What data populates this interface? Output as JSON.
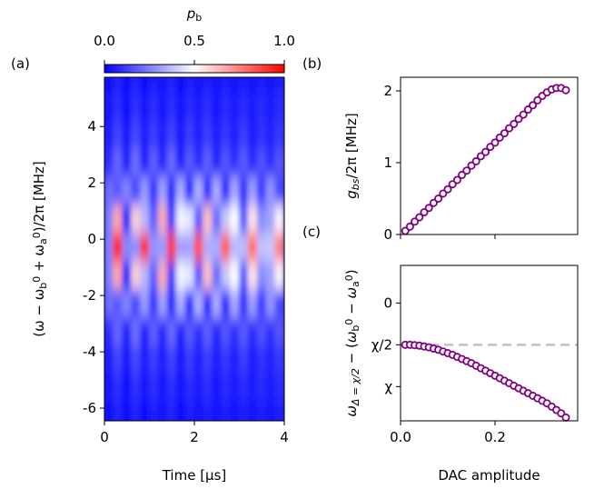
{
  "chart_data": [
    {
      "type": "heatmap",
      "panel_label": "(a)",
      "xlabel": "Time [μs]",
      "ylabel": [
        {
          "text": "(ω − ω",
          "italic": false
        },
        {
          "text": "b",
          "sub": true
        },
        {
          "text": "0",
          "sup": true
        },
        {
          "text": " + ω"
        },
        {
          "text": "a",
          "sub": true
        },
        {
          "text": "0",
          "sup": true
        },
        {
          "text": ")/2π [MHz]"
        }
      ],
      "x": [
        0.1,
        0.3,
        0.5,
        0.7,
        0.9,
        1.1,
        1.3,
        1.5,
        1.7,
        1.9,
        2.1,
        2.3,
        2.5,
        2.7,
        2.9,
        3.1,
        3.3,
        3.5,
        3.7,
        3.9
      ],
      "y": [
        5.7,
        4.7,
        3.7,
        2.7,
        1.7,
        0.7,
        -0.3,
        -1.3,
        -2.3,
        -3.3,
        -4.3,
        -5.3,
        -6.3
      ],
      "z": [
        [
          0.03,
          0.07,
          0.03,
          0.07,
          0.03,
          0.06,
          0.04,
          0.07,
          0.03,
          0.06,
          0.04,
          0.06,
          0.04,
          0.06,
          0.04,
          0.06,
          0.04,
          0.06,
          0.04,
          0.06
        ],
        [
          0.04,
          0.09,
          0.03,
          0.1,
          0.04,
          0.09,
          0.04,
          0.09,
          0.04,
          0.08,
          0.05,
          0.09,
          0.04,
          0.08,
          0.05,
          0.08,
          0.05,
          0.08,
          0.05,
          0.08
        ],
        [
          0.05,
          0.13,
          0.04,
          0.14,
          0.05,
          0.12,
          0.05,
          0.13,
          0.04,
          0.12,
          0.06,
          0.12,
          0.05,
          0.11,
          0.06,
          0.12,
          0.06,
          0.1,
          0.07,
          0.11
        ],
        [
          0.08,
          0.2,
          0.05,
          0.22,
          0.06,
          0.19,
          0.07,
          0.21,
          0.06,
          0.18,
          0.08,
          0.19,
          0.07,
          0.17,
          0.09,
          0.18,
          0.08,
          0.16,
          0.09,
          0.17
        ],
        [
          0.22,
          0.17,
          0.26,
          0.13,
          0.3,
          0.1,
          0.32,
          0.07,
          0.34,
          0.07,
          0.35,
          0.07,
          0.34,
          0.07,
          0.33,
          0.09,
          0.31,
          0.11,
          0.29,
          0.14
        ],
        [
          0.25,
          0.67,
          0.03,
          0.59,
          0.36,
          0.18,
          0.66,
          0.11,
          0.48,
          0.45,
          0.16,
          0.62,
          0.2,
          0.39,
          0.5,
          0.16,
          0.55,
          0.27,
          0.32,
          0.52
        ],
        [
          0.25,
          0.98,
          0.27,
          0.28,
          0.93,
          0.29,
          0.3,
          0.89,
          0.31,
          0.32,
          0.85,
          0.34,
          0.34,
          0.82,
          0.36,
          0.37,
          0.79,
          0.38,
          0.39,
          0.76
        ],
        [
          0.25,
          0.67,
          0.03,
          0.59,
          0.36,
          0.18,
          0.66,
          0.11,
          0.48,
          0.45,
          0.16,
          0.62,
          0.2,
          0.39,
          0.5,
          0.16,
          0.55,
          0.27,
          0.32,
          0.52
        ],
        [
          0.22,
          0.17,
          0.26,
          0.13,
          0.3,
          0.1,
          0.32,
          0.07,
          0.34,
          0.07,
          0.35,
          0.07,
          0.34,
          0.07,
          0.33,
          0.09,
          0.31,
          0.11,
          0.29,
          0.14
        ],
        [
          0.08,
          0.2,
          0.05,
          0.22,
          0.06,
          0.19,
          0.07,
          0.21,
          0.06,
          0.18,
          0.08,
          0.19,
          0.07,
          0.17,
          0.09,
          0.18,
          0.08,
          0.16,
          0.09,
          0.17
        ],
        [
          0.05,
          0.13,
          0.04,
          0.14,
          0.05,
          0.12,
          0.05,
          0.13,
          0.04,
          0.12,
          0.06,
          0.12,
          0.05,
          0.11,
          0.06,
          0.12,
          0.06,
          0.1,
          0.07,
          0.11
        ],
        [
          0.04,
          0.09,
          0.03,
          0.1,
          0.04,
          0.09,
          0.04,
          0.09,
          0.04,
          0.08,
          0.05,
          0.09,
          0.04,
          0.08,
          0.05,
          0.08,
          0.05,
          0.08,
          0.05,
          0.08
        ],
        [
          0.03,
          0.07,
          0.03,
          0.07,
          0.03,
          0.06,
          0.04,
          0.07,
          0.03,
          0.06,
          0.04,
          0.06,
          0.04,
          0.06,
          0.04,
          0.06,
          0.04,
          0.06,
          0.04,
          0.06
        ]
      ],
      "xlim": [
        0,
        4
      ],
      "ylim": [
        -6.45,
        5.75
      ],
      "xticks": [
        0,
        2,
        4
      ],
      "yticks": [
        -6,
        -4,
        -2,
        0,
        2,
        4
      ],
      "colormap": [
        "#0000ff",
        "#ffffff",
        "#ff0000"
      ],
      "colorbar": {
        "label": [
          {
            "text": "p",
            "italic": true
          },
          {
            "text": "b",
            "sub": true
          }
        ],
        "lim": [
          0,
          1
        ],
        "ticks": [
          {
            "value": 0,
            "label": "0.0"
          },
          {
            "value": 0.5,
            "label": "0.5"
          },
          {
            "value": 1,
            "label": "1.0"
          }
        ]
      }
    },
    {
      "type": "scatter",
      "panel_label": "(b)",
      "ylabel": [
        {
          "text": "g",
          "italic": true
        },
        {
          "text": "bs",
          "sub": true,
          "italic": true
        },
        {
          "text": "/2π [MHz]"
        }
      ],
      "x": [
        0.01,
        0.02,
        0.03,
        0.04,
        0.05,
        0.06,
        0.07,
        0.08,
        0.09,
        0.1,
        0.11,
        0.12,
        0.13,
        0.14,
        0.15,
        0.16,
        0.17,
        0.18,
        0.19,
        0.2,
        0.21,
        0.22,
        0.23,
        0.24,
        0.25,
        0.26,
        0.27,
        0.28,
        0.29,
        0.3,
        0.31,
        0.32,
        0.33,
        0.34,
        0.35
      ],
      "values": [
        0.05,
        0.11,
        0.18,
        0.24,
        0.31,
        0.37,
        0.44,
        0.5,
        0.57,
        0.63,
        0.7,
        0.76,
        0.83,
        0.89,
        0.96,
        1.02,
        1.09,
        1.15,
        1.22,
        1.28,
        1.35,
        1.41,
        1.48,
        1.54,
        1.61,
        1.67,
        1.74,
        1.8,
        1.87,
        1.93,
        1.98,
        2.02,
        2.04,
        2.04,
        2.01
      ],
      "color": "#800080",
      "xlim": [
        0,
        0.375
      ],
      "ylim": [
        0,
        2.19
      ],
      "xticks": [
        0,
        0.2
      ],
      "show_xtick_labels": false,
      "yticks": [
        0,
        1,
        2
      ]
    },
    {
      "type": "scatter",
      "panel_label": "(c)",
      "xlabel": "DAC amplitude",
      "ylabel": [
        {
          "text": "ω",
          "italic": true
        },
        {
          "text": "Δ = χ/2",
          "sub": true,
          "italic": true
        },
        {
          "text": " − ("
        },
        {
          "text": "ω",
          "italic": true
        },
        {
          "text": "b",
          "sub": true
        },
        {
          "text": "0",
          "sup": true
        },
        {
          "text": " − "
        },
        {
          "text": "ω",
          "italic": true
        },
        {
          "text": "a",
          "sub": true
        },
        {
          "text": "0",
          "sup": true
        },
        {
          "text": ")"
        }
      ],
      "x": [
        0.01,
        0.02,
        0.03,
        0.04,
        0.05,
        0.06,
        0.07,
        0.08,
        0.09,
        0.1,
        0.11,
        0.12,
        0.13,
        0.14,
        0.15,
        0.16,
        0.17,
        0.18,
        0.19,
        0.2,
        0.21,
        0.22,
        0.23,
        0.24,
        0.25,
        0.26,
        0.27,
        0.28,
        0.29,
        0.3,
        0.31,
        0.32,
        0.33,
        0.34,
        0.35
      ],
      "values": [
        0.5,
        0.5,
        0.505,
        0.51,
        0.52,
        0.53,
        0.545,
        0.56,
        0.58,
        0.6,
        0.62,
        0.645,
        0.67,
        0.695,
        0.72,
        0.75,
        0.78,
        0.81,
        0.84,
        0.87,
        0.9,
        0.93,
        0.96,
        0.99,
        1.02,
        1.05,
        1.08,
        1.11,
        1.14,
        1.17,
        1.2,
        1.24,
        1.28,
        1.32,
        1.37
      ],
      "color": "#800080",
      "xlim": [
        0,
        0.375
      ],
      "ylim": [
        1.41,
        -0.45
      ],
      "xticks": [
        {
          "value": 0,
          "label": "0.0"
        },
        {
          "value": 0.2,
          "label": "0.2"
        }
      ],
      "show_xtick_labels": true,
      "yticks": [
        0,
        {
          "value": 0.5,
          "label": "χ/2"
        },
        {
          "value": 1,
          "label": "χ"
        }
      ],
      "hline": {
        "value": 0.5,
        "color": "#c0c0c0",
        "dashed": true
      }
    }
  ]
}
